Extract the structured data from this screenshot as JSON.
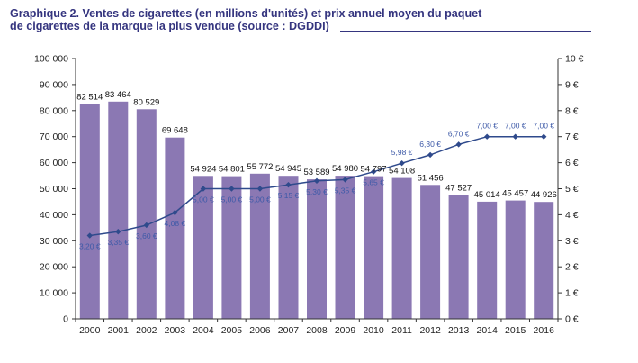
{
  "title": {
    "line1": "Graphique 2. Ventes de cigarettes (en millions d'unités) et prix annuel moyen du paquet",
    "line2": "de cigarettes de la marque la plus vendue (source : DGDDI)"
  },
  "colors": {
    "title": "#35357f",
    "bars": "#8b78b3",
    "line": "#2f4a8c",
    "price_labels": "#3e5aa8",
    "axis": "#333333"
  },
  "chart_data": {
    "type": "bar",
    "categories": [
      "2000",
      "2001",
      "2002",
      "2003",
      "2004",
      "2005",
      "2006",
      "2007",
      "2008",
      "2009",
      "2010",
      "2011",
      "2012",
      "2013",
      "2014",
      "2015",
      "2016"
    ],
    "series": [
      {
        "type": "bar",
        "axis": "left",
        "values": [
          82514,
          83464,
          80529,
          69648,
          54924,
          54801,
          55772,
          54945,
          53589,
          54980,
          54797,
          54108,
          51456,
          47527,
          45014,
          45457,
          44926
        ],
        "labels": [
          "82 514",
          "83 464",
          "80 529",
          "69 648",
          "54 924",
          "54 801",
          "55 772",
          "54 945",
          "53 589",
          "54 980",
          "54 797",
          "54 108",
          "51 456",
          "47 527",
          "45 014",
          "45 457",
          "44 926"
        ]
      },
      {
        "type": "line",
        "axis": "right",
        "values": [
          3.2,
          3.35,
          3.6,
          4.08,
          5.0,
          5.0,
          5.0,
          5.15,
          5.3,
          5.35,
          5.65,
          5.98,
          6.3,
          6.7,
          7.0,
          7.0,
          7.0
        ],
        "labels": [
          "3,20 €",
          "3,35 €",
          "3,60 €",
          "4,08 €",
          "5,00 €",
          "5,00 €",
          "5,00 €",
          "5,15 €",
          "5,30 €",
          "5,35 €",
          "5,65 €",
          "5,98 €",
          "6,30 €",
          "6,70 €",
          "7,00 €",
          "7,00 €",
          "7,00 €"
        ]
      }
    ],
    "y_left": {
      "ylim": [
        0,
        100000
      ],
      "ticks": [
        0,
        10000,
        20000,
        30000,
        40000,
        50000,
        60000,
        70000,
        80000,
        90000,
        100000
      ],
      "tick_labels": [
        "0",
        "10 000",
        "20 000",
        "30 000",
        "40 000",
        "50 000",
        "60 000",
        "70 000",
        "80 000",
        "90 000",
        "100 000"
      ]
    },
    "y_right": {
      "ylim": [
        0,
        10
      ],
      "ticks": [
        0,
        1,
        2,
        3,
        4,
        5,
        6,
        7,
        8,
        9,
        10
      ],
      "tick_labels": [
        "0 €",
        "1 €",
        "2 €",
        "3 €",
        "4 €",
        "5 €",
        "6 €",
        "7 €",
        "8 €",
        "9 €",
        "10 €"
      ]
    },
    "grid": false,
    "legend": "none"
  }
}
